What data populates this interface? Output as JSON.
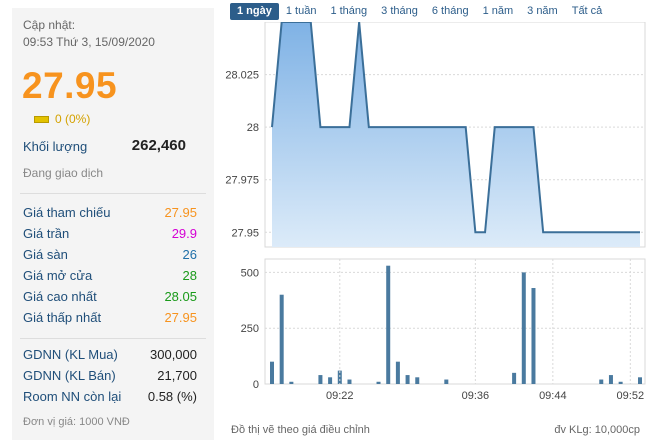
{
  "summary": {
    "update_label": "Cập nhật:",
    "update_time": "09:53 Thứ 3, 15/09/2020",
    "price": "27.95",
    "change": "0 (0%)",
    "volume_label": "Khối lượng",
    "volume_value": "262,460",
    "status": "Đang giao dịch"
  },
  "price_rows": [
    {
      "label": "Giá tham chiếu",
      "value": "27.95",
      "color": "#f7931e"
    },
    {
      "label": "Giá trần",
      "value": "29.9",
      "color": "#d400d4"
    },
    {
      "label": "Giá sàn",
      "value": "26",
      "color": "#1f6fa8"
    },
    {
      "label": "Giá mở cửa",
      "value": "28",
      "color": "#1a9a1a"
    },
    {
      "label": "Giá cao nhất",
      "value": "28.05",
      "color": "#1a9a1a"
    },
    {
      "label": "Giá thấp nhất",
      "value": "27.95",
      "color": "#f7931e"
    }
  ],
  "foreign_rows": [
    {
      "label": "GDNN (KL Mua)",
      "value": "300,000",
      "color": "#222222"
    },
    {
      "label": "GDNN (KL Bán)",
      "value": "21,700",
      "color": "#222222"
    },
    {
      "label": "Room NN còn lại",
      "value": "0.58 (%)",
      "color": "#222222"
    }
  ],
  "unit_note": "Đơn vị giá: 1000 VNĐ",
  "tabs": [
    "1 ngày",
    "1 tuần",
    "1 tháng",
    "3 tháng",
    "6 tháng",
    "1 năm",
    "3 năm",
    "Tất cả"
  ],
  "active_tab": 0,
  "footer": {
    "left": "Đồ thị vẽ theo giá điều chỉnh",
    "right": "đv KLg: 10,000cp"
  },
  "colors": {
    "price_line": "#3b6f99",
    "area_top": "#7fb2e5",
    "area_bottom": "#dcebf9",
    "bar": "#4a7a9f",
    "grid": "#d9d9d9"
  },
  "chart_data": [
    {
      "type": "area",
      "title": "",
      "x": [
        "09:15",
        "09:16",
        "09:17",
        "09:18",
        "09:19",
        "09:20",
        "09:21",
        "09:22",
        "09:23",
        "09:24",
        "09:25",
        "09:26",
        "09:27",
        "09:28",
        "09:29",
        "09:30",
        "09:31",
        "09:32",
        "09:33",
        "09:34",
        "09:35",
        "09:36",
        "09:37",
        "09:38",
        "09:39",
        "09:40",
        "09:41",
        "09:42",
        "09:43",
        "09:44",
        "09:45",
        "09:46",
        "09:47",
        "09:48",
        "09:49",
        "09:50",
        "09:51",
        "09:52",
        "09:53"
      ],
      "series": [
        {
          "values": [
            28,
            28.05,
            28.05,
            28.05,
            28.05,
            28,
            28,
            28,
            28,
            28.05,
            28,
            28,
            28,
            28,
            28,
            28,
            28,
            28,
            28,
            28,
            28,
            27.95,
            27.95,
            28,
            28,
            28,
            28,
            28,
            27.95,
            27.95,
            27.95,
            27.95,
            27.95,
            27.95,
            27.95,
            27.95,
            27.95,
            27.95,
            27.95
          ]
        }
      ],
      "y_ticks": [
        "28.025",
        "28",
        "27.975",
        "27.95"
      ],
      "ylim": [
        27.943,
        28.05
      ],
      "grid": true
    },
    {
      "type": "bar",
      "title": "",
      "x": [
        "09:15",
        "09:16",
        "09:17",
        "09:18",
        "09:19",
        "09:20",
        "09:21",
        "09:22",
        "09:23",
        "09:24",
        "09:25",
        "09:26",
        "09:27",
        "09:28",
        "09:29",
        "09:30",
        "09:31",
        "09:32",
        "09:33",
        "09:34",
        "09:35",
        "09:36",
        "09:37",
        "09:38",
        "09:39",
        "09:40",
        "09:41",
        "09:42",
        "09:43",
        "09:44",
        "09:45",
        "09:46",
        "09:47",
        "09:48",
        "09:49",
        "09:50",
        "09:51",
        "09:52",
        "09:53"
      ],
      "values": [
        100,
        400,
        10,
        0,
        0,
        40,
        30,
        60,
        20,
        0,
        0,
        10,
        530,
        100,
        40,
        30,
        0,
        0,
        20,
        0,
        0,
        0,
        0,
        0,
        0,
        50,
        500,
        430,
        0,
        0,
        0,
        0,
        0,
        0,
        20,
        40,
        10,
        0,
        30
      ],
      "x_ticks": [
        "09:22",
        "09:36",
        "09:44",
        "09:52"
      ],
      "y_ticks": [
        "500",
        "250",
        "0"
      ],
      "ylim": [
        0,
        560
      ],
      "unit": "đv KLg: 10,000cp",
      "grid": true
    }
  ]
}
